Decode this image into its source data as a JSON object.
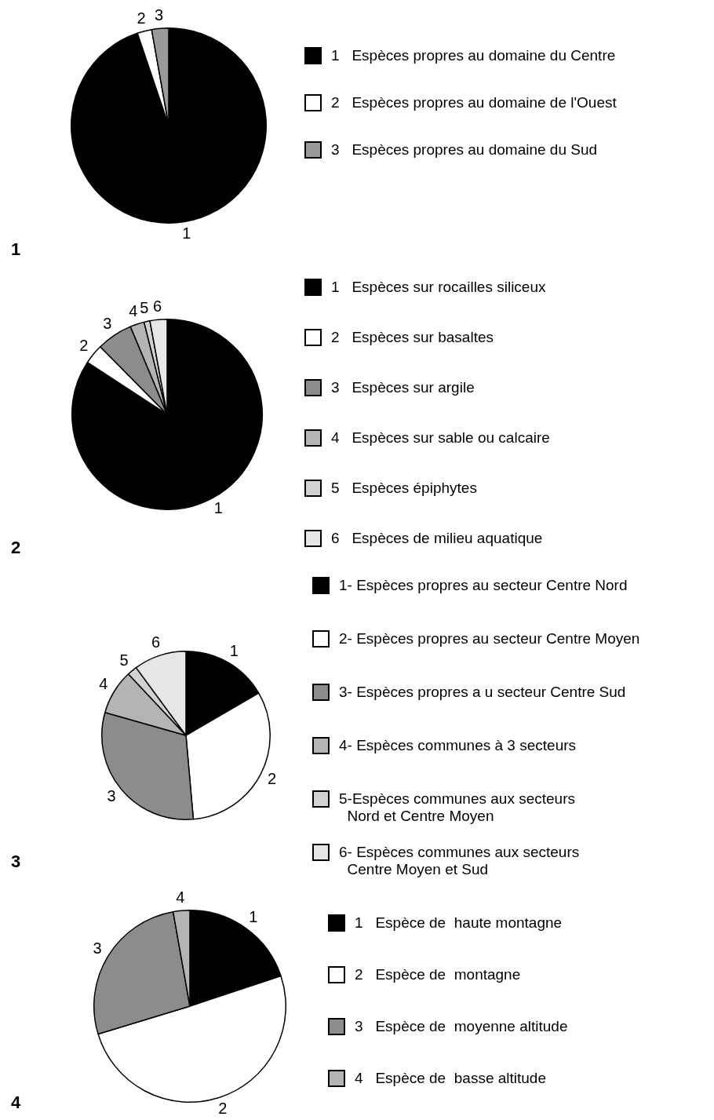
{
  "chart_data": [
    {
      "type": "pie",
      "title": "1",
      "categories": [
        "1   Espèces propres au domaine du Centre",
        "2   Espèces propres au domaine de l'Ouest",
        "3   Espèces propres au domaine du Sud"
      ],
      "values": [
        94.8,
        2.4,
        2.8
      ],
      "colors": [
        "#000000",
        "#ffffff",
        "#9a9a9a"
      ],
      "annotations": [
        "1",
        "2",
        "3"
      ],
      "legend": "right"
    },
    {
      "type": "pie",
      "title": "2",
      "categories": [
        "1   Espèces sur rocailles siliceux",
        "2   Espèces sur basaltes",
        "3   Espèces sur argile",
        "4   Espèces sur sable ou calcaire",
        "5   Espèces épiphytes",
        "6   Espèces de milieu aquatique"
      ],
      "values": [
        84.2,
        3.4,
        6.1,
        2.4,
        1.0,
        2.9
      ],
      "colors": [
        "#000000",
        "#ffffff",
        "#8c8c8c",
        "#b4b4b4",
        "#d2d2d2",
        "#e6e6e6"
      ],
      "annotations": [
        "1",
        "2",
        "3",
        "4",
        "5",
        "6"
      ],
      "legend": "right"
    },
    {
      "type": "pie",
      "title": "3",
      "categories": [
        "1- Espèces propres au secteur Centre Nord",
        "2- Espèces propres au secteur Centre Moyen",
        "3- Espèces propres a u secteur Centre Sud",
        "4- Espèces communes à 3 secteurs",
        "5-Espèces communes aux secteurs\n  Nord et Centre Moyen",
        "6- Espèces communes aux secteurs\n  Centre Moyen et Sud"
      ],
      "values": [
        16.6,
        32.0,
        30.8,
        8.6,
        1.9,
        10.1
      ],
      "colors": [
        "#000000",
        "#ffffff",
        "#8c8c8c",
        "#b4b4b4",
        "#d2d2d2",
        "#e6e6e6"
      ],
      "annotations": [
        "1",
        "2",
        "3",
        "4",
        "5",
        "6"
      ],
      "legend": "right"
    },
    {
      "type": "pie",
      "title": "4",
      "categories": [
        "1   Espèce de  haute montagne",
        "2   Espèce de  montagne",
        "3   Espèce de  moyenne altitude",
        "4   Espèce de  basse altitude"
      ],
      "values": [
        19.9,
        50.4,
        26.9,
        2.8
      ],
      "colors": [
        "#000000",
        "#ffffff",
        "#8c8c8c",
        "#b4b4b4"
      ],
      "annotations": [
        "1",
        "2",
        "3",
        "4"
      ],
      "legend": "right"
    }
  ]
}
